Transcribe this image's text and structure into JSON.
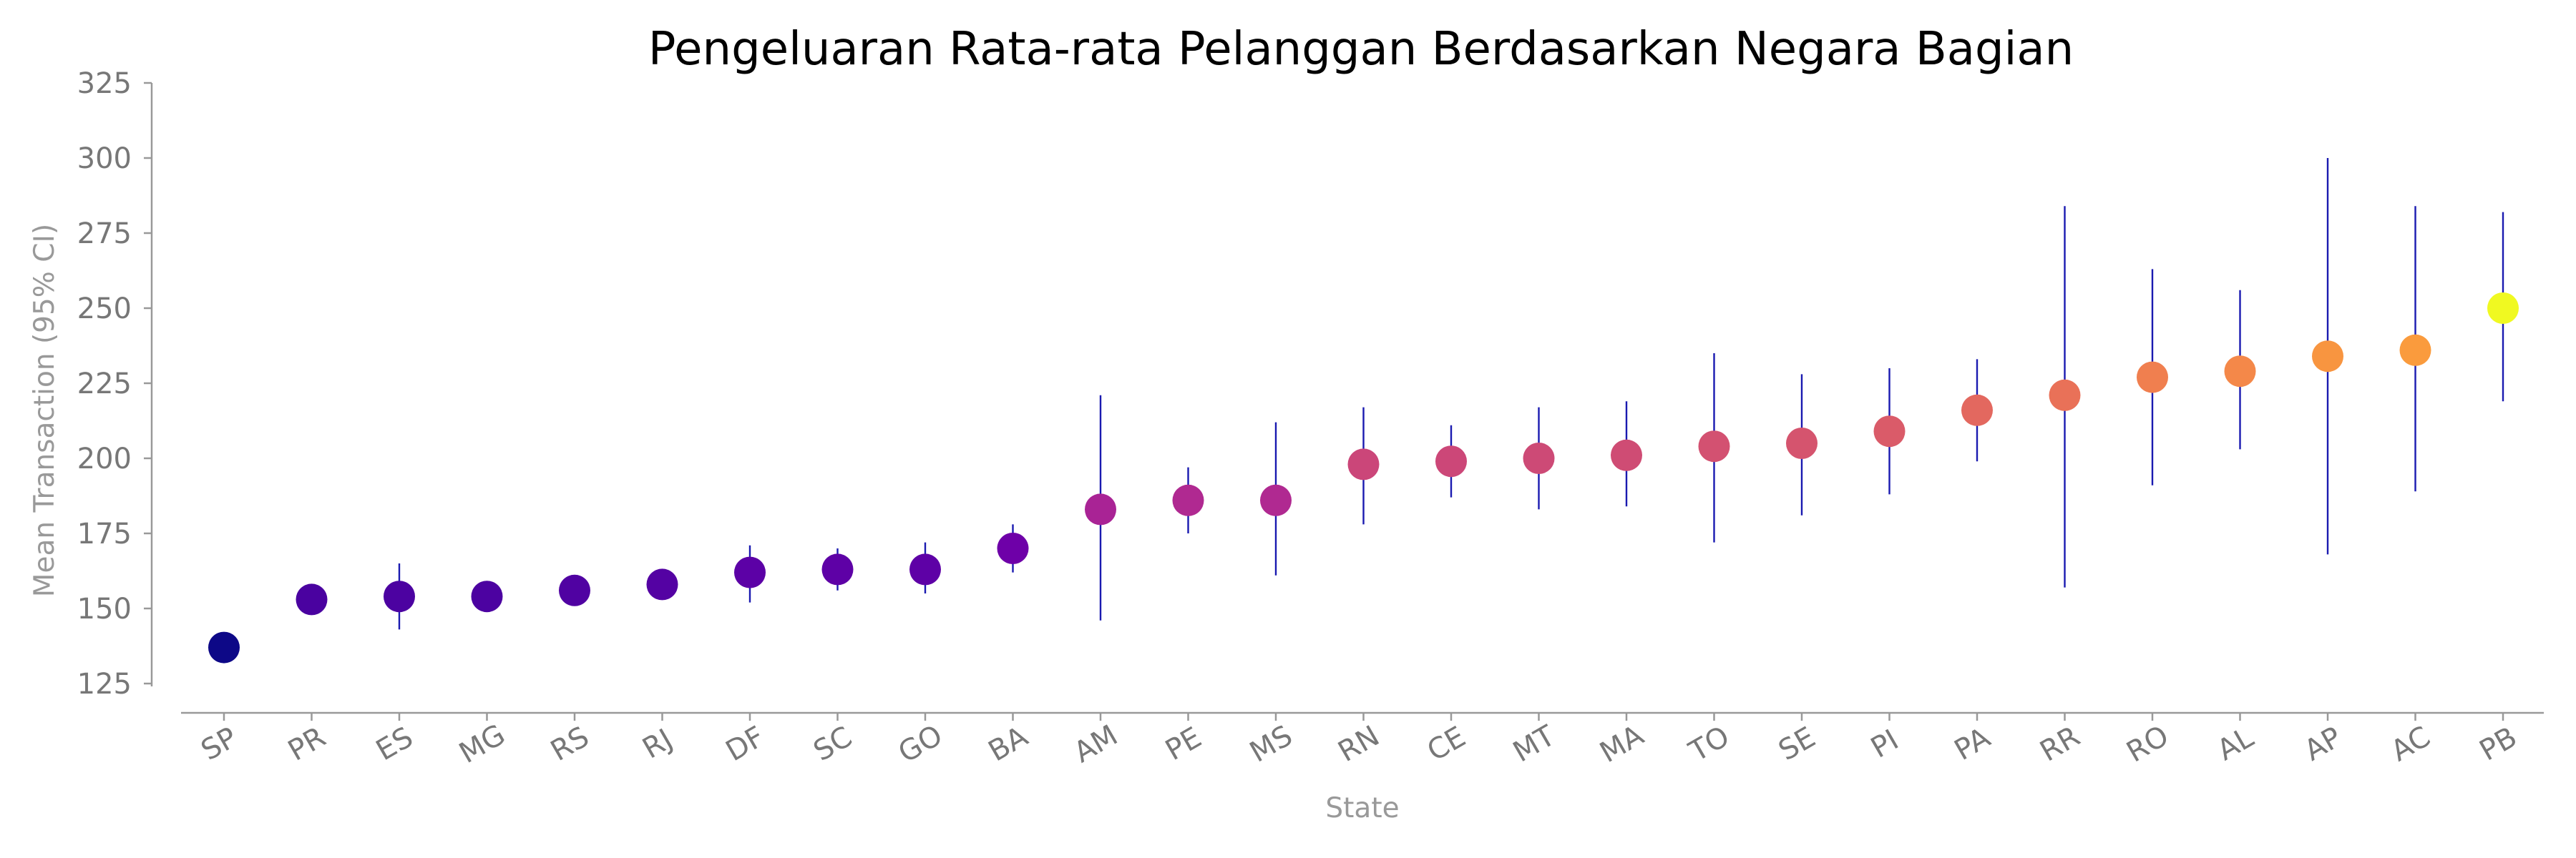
{
  "chart_data": {
    "type": "scatter",
    "title": "Pengeluaran Rata-rata Pelanggan Berdasarkan Negara Bagian",
    "xlabel": "State",
    "ylabel": "Mean Transaction (95% CI)",
    "ylim": [
      120,
      325
    ],
    "yticks": [
      125,
      150,
      175,
      200,
      225,
      250,
      275,
      300,
      325
    ],
    "grid": false,
    "error_bar_color": "#1a1ab0",
    "colormap": "plasma",
    "points": [
      {
        "state": "SP",
        "mean": 137,
        "ci_low": 136,
        "ci_high": 138,
        "color": "#0d0887"
      },
      {
        "state": "PR",
        "mean": 153,
        "ci_low": 150,
        "ci_high": 156,
        "color": "#4a02a0"
      },
      {
        "state": "ES",
        "mean": 154,
        "ci_low": 143,
        "ci_high": 165,
        "color": "#4c02a1"
      },
      {
        "state": "MG",
        "mean": 154,
        "ci_low": 152,
        "ci_high": 157,
        "color": "#4c02a1"
      },
      {
        "state": "RS",
        "mean": 156,
        "ci_low": 152,
        "ci_high": 160,
        "color": "#5002a2"
      },
      {
        "state": "RJ",
        "mean": 158,
        "ci_low": 156,
        "ci_high": 161,
        "color": "#5402a3"
      },
      {
        "state": "DF",
        "mean": 162,
        "ci_low": 152,
        "ci_high": 171,
        "color": "#5c01a6"
      },
      {
        "state": "SC",
        "mean": 163,
        "ci_low": 156,
        "ci_high": 170,
        "color": "#5e01a6"
      },
      {
        "state": "GO",
        "mean": 163,
        "ci_low": 155,
        "ci_high": 172,
        "color": "#5e01a6"
      },
      {
        "state": "BA",
        "mean": 170,
        "ci_low": 162,
        "ci_high": 178,
        "color": "#6e00a8"
      },
      {
        "state": "AM",
        "mean": 183,
        "ci_low": 146,
        "ci_high": 221,
        "color": "#a92395"
      },
      {
        "state": "PE",
        "mean": 186,
        "ci_low": 175,
        "ci_high": 197,
        "color": "#b02991"
      },
      {
        "state": "MS",
        "mean": 186,
        "ci_low": 161,
        "ci_high": 212,
        "color": "#b02991"
      },
      {
        "state": "RN",
        "mean": 198,
        "ci_low": 178,
        "ci_high": 217,
        "color": "#cb4679"
      },
      {
        "state": "CE",
        "mean": 199,
        "ci_low": 187,
        "ci_high": 211,
        "color": "#cc4778"
      },
      {
        "state": "MT",
        "mean": 200,
        "ci_low": 183,
        "ci_high": 217,
        "color": "#cd4a76"
      },
      {
        "state": "MA",
        "mean": 201,
        "ci_low": 184,
        "ci_high": 219,
        "color": "#cf4c74"
      },
      {
        "state": "TO",
        "mean": 204,
        "ci_low": 172,
        "ci_high": 235,
        "color": "#d35171"
      },
      {
        "state": "SE",
        "mean": 205,
        "ci_low": 181,
        "ci_high": 228,
        "color": "#d5546e"
      },
      {
        "state": "PI",
        "mean": 209,
        "ci_low": 188,
        "ci_high": 230,
        "color": "#da5b69"
      },
      {
        "state": "PA",
        "mean": 216,
        "ci_low": 199,
        "ci_high": 233,
        "color": "#e3685f"
      },
      {
        "state": "RR",
        "mean": 221,
        "ci_low": 157,
        "ci_high": 284,
        "color": "#e97158"
      },
      {
        "state": "RO",
        "mean": 227,
        "ci_low": 191,
        "ci_high": 263,
        "color": "#f07f4f"
      },
      {
        "state": "AL",
        "mean": 229,
        "ci_low": 203,
        "ci_high": 256,
        "color": "#f48849"
      },
      {
        "state": "AP",
        "mean": 234,
        "ci_low": 168,
        "ci_high": 300,
        "color": "#f89540"
      },
      {
        "state": "AC",
        "mean": 236,
        "ci_low": 189,
        "ci_high": 284,
        "color": "#fa9b3d"
      },
      {
        "state": "PB",
        "mean": 250,
        "ci_low": 219,
        "ci_high": 282,
        "color": "#f0f921"
      }
    ]
  }
}
